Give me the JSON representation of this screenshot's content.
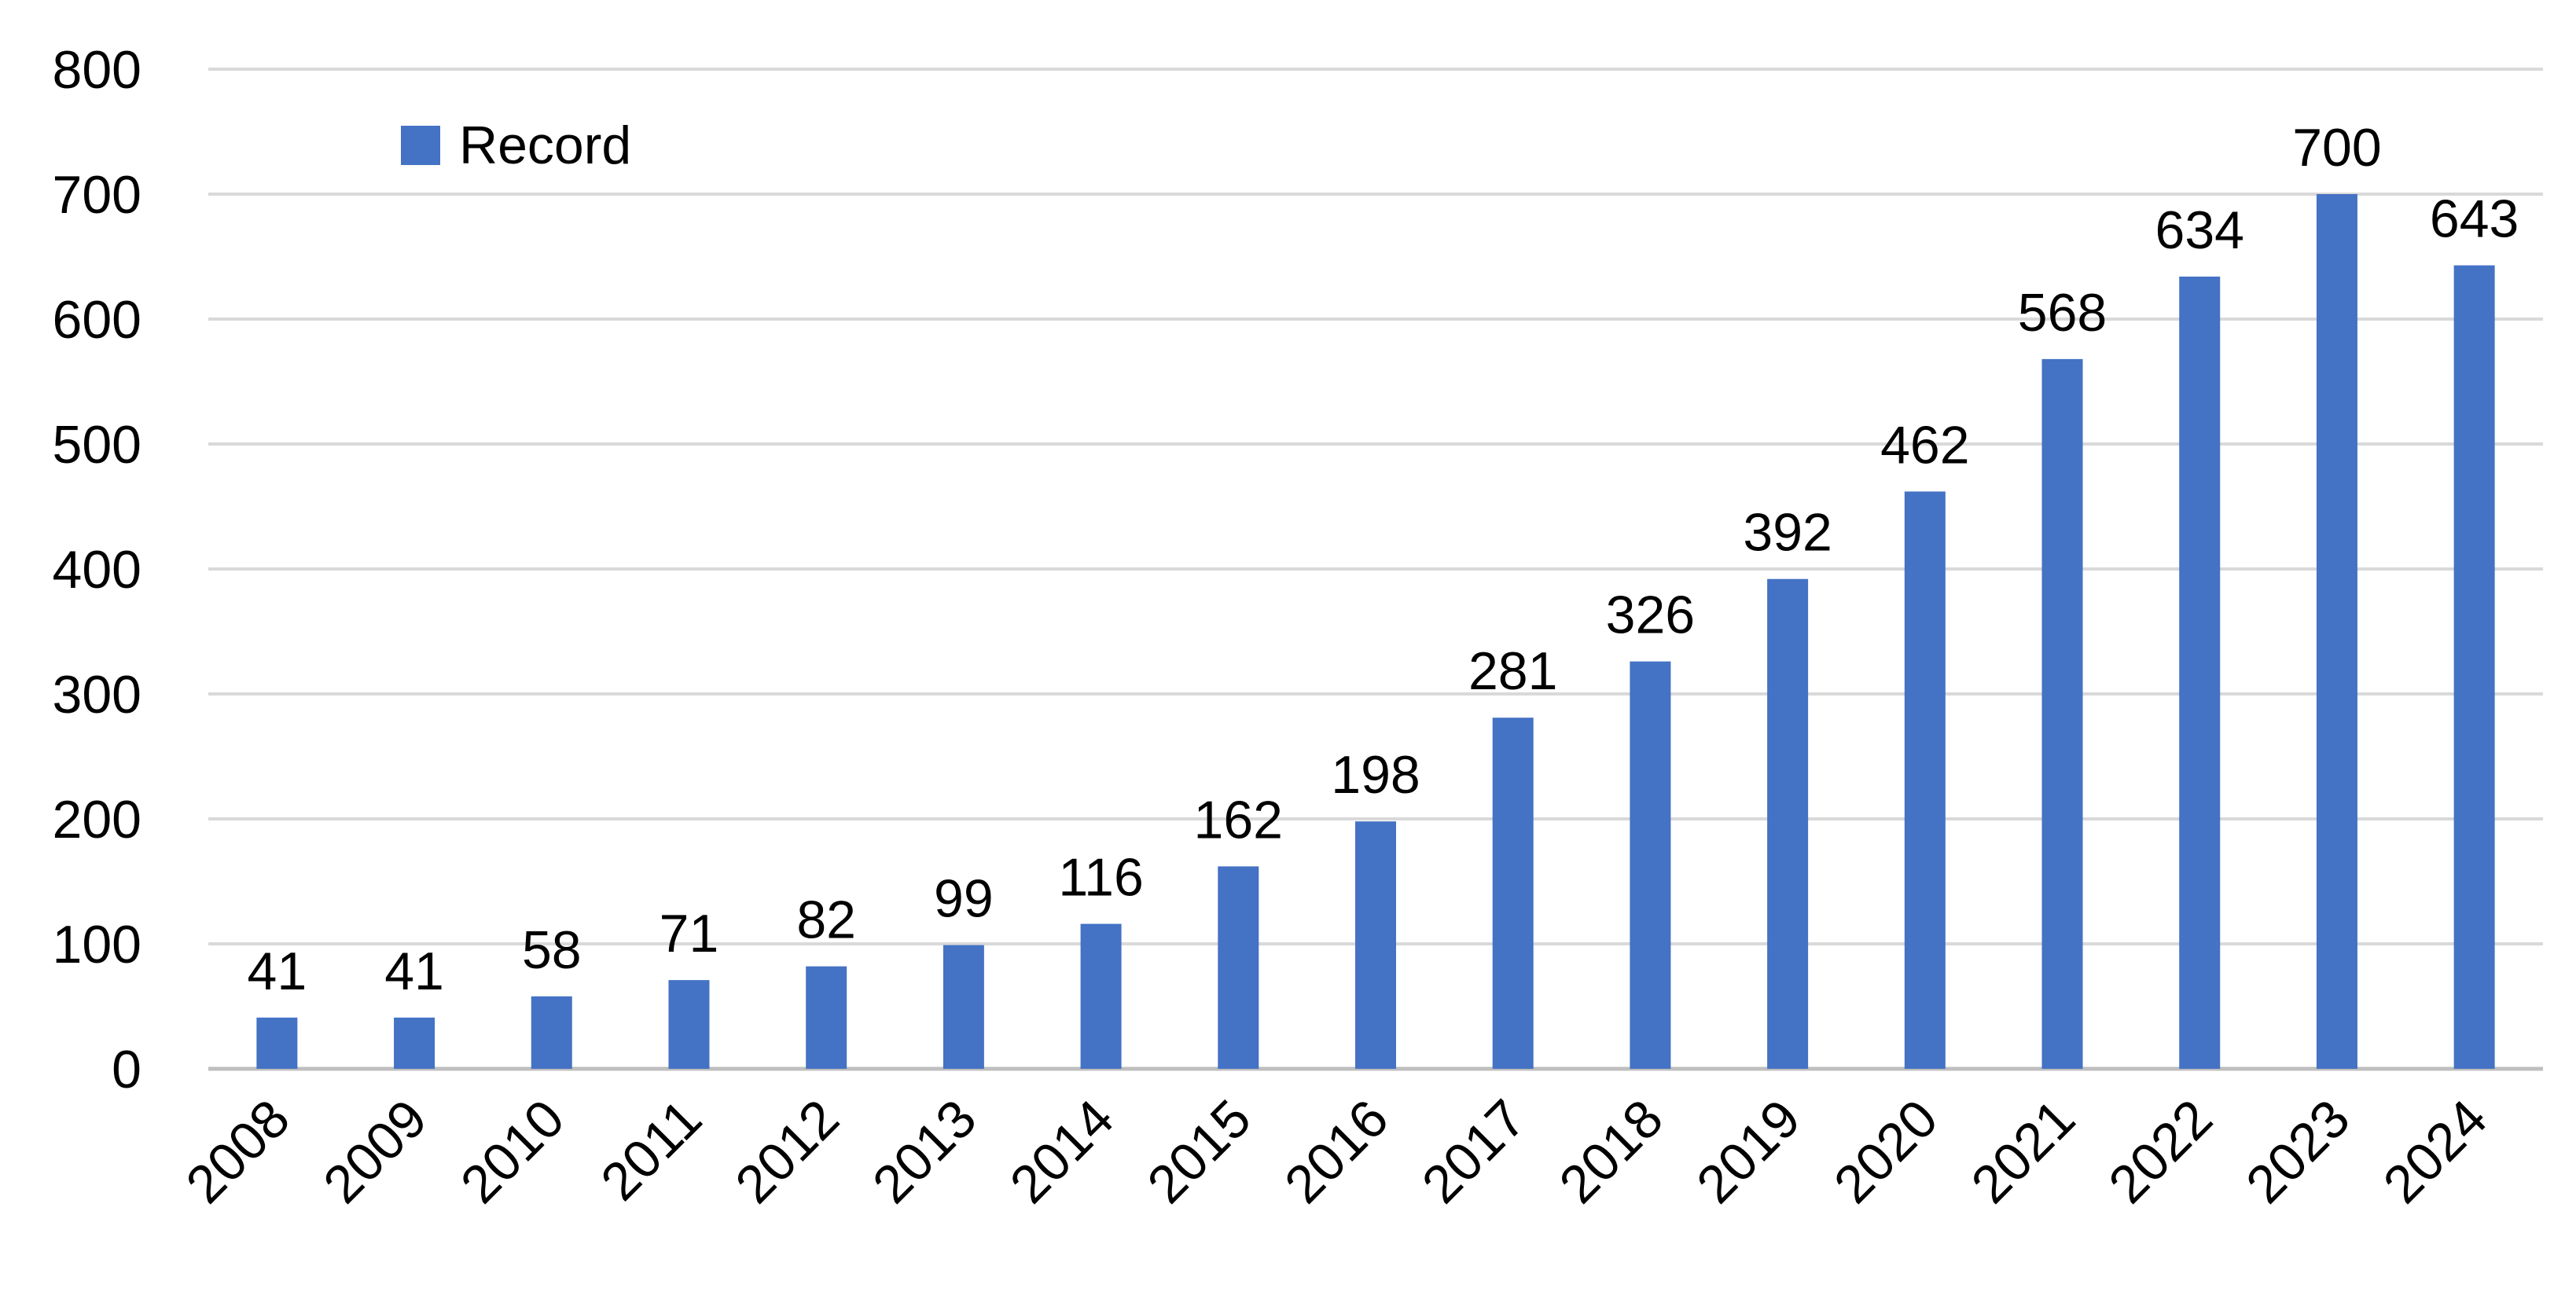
{
  "chart_data": {
    "type": "bar",
    "categories": [
      "2008",
      "2009",
      "2010",
      "2011",
      "2012",
      "2013",
      "2014",
      "2015",
      "2016",
      "2017",
      "2018",
      "2019",
      "2020",
      "2021",
      "2022",
      "2023",
      "2024"
    ],
    "series": [
      {
        "name": "Record",
        "values": [
          41,
          41,
          58,
          71,
          82,
          99,
          116,
          162,
          198,
          281,
          326,
          392,
          462,
          568,
          634,
          700,
          643
        ]
      }
    ],
    "title": "",
    "xlabel": "",
    "ylabel": "",
    "ylim": [
      0,
      800
    ],
    "yticks": [
      0,
      100,
      200,
      300,
      400,
      500,
      600,
      700,
      800
    ],
    "grid": true,
    "legend_position": "top-left",
    "data_labels": true,
    "bar_color": "#4472C4",
    "grid_color": "#D9D9D9",
    "axis_color": "#BFBFBF"
  }
}
